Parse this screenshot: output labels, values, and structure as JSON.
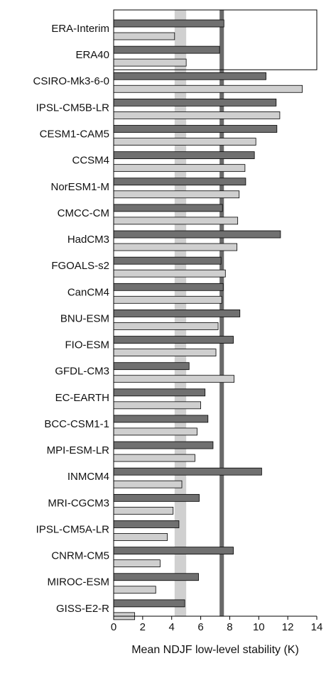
{
  "chart_data": {
    "type": "barh",
    "x_label": "Mean NDJF low-level stability (K)",
    "categories": [
      "ERA-Interim",
      "ERA40",
      "CSIRO-Mk3-6-0",
      "IPSL-CM5B-LR",
      "CESM1-CAM5",
      "CCSM4",
      "NorESM1-M",
      "CMCC-CM",
      "HadCM3",
      "FGOALS-s2",
      "CanCM4",
      "BNU-ESM",
      "FIO-ESM",
      "GFDL-CM3",
      "EC-EARTH",
      "BCC-CSM1-1",
      "MPI-ESM-LR",
      "INMCM4",
      "MRI-CGCM3",
      "IPSL-CM5A-LR",
      "CNRM-CM5",
      "MIROC-ESM",
      "GISS-E2-R"
    ],
    "series": [
      {
        "color": "#707070",
        "values": [
          7.6,
          7.3,
          10.5,
          11.2,
          11.25,
          9.7,
          9.1,
          7.5,
          11.5,
          7.4,
          7.55,
          8.7,
          8.25,
          5.2,
          6.3,
          6.5,
          6.85,
          10.2,
          5.9,
          4.5,
          8.25,
          5.85,
          4.9
        ]
      },
      {
        "color": "#cfcfcf",
        "values": [
          4.2,
          5.0,
          13.0,
          11.45,
          9.8,
          9.05,
          8.65,
          8.55,
          8.5,
          7.7,
          7.45,
          7.2,
          7.05,
          8.3,
          6.0,
          5.75,
          5.6,
          4.7,
          4.1,
          3.7,
          3.2,
          2.9,
          1.45
        ]
      }
    ],
    "bands": [
      {
        "range": [
          4.2,
          5.0
        ],
        "color": "#d0d0d0"
      },
      {
        "range": [
          7.3,
          7.6
        ],
        "color": "#6a6a6a"
      }
    ],
    "xlim": [
      0,
      14
    ],
    "xticks": [
      0,
      2,
      4,
      6,
      8,
      10,
      12,
      14
    ]
  }
}
